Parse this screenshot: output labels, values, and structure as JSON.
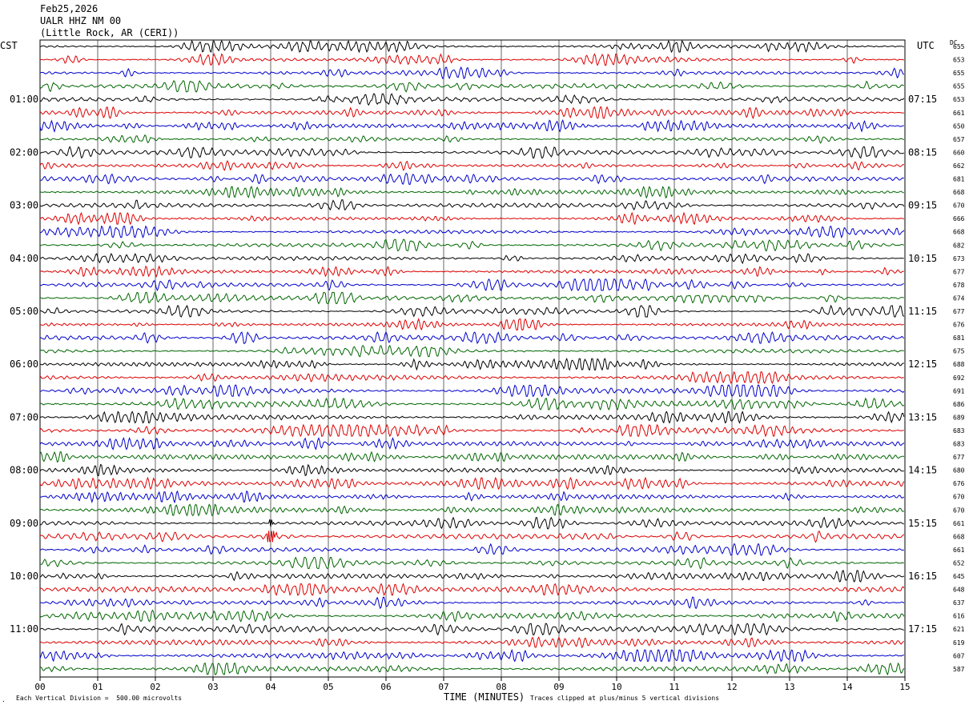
{
  "header": {
    "date": "Feb25,2026",
    "station": "UALR HHZ NM 00",
    "location": "(Little Rock, AR (CERI))"
  },
  "left_zone": "CST",
  "right_zone": "UTC",
  "dc_header": "DC",
  "footer": {
    "scale_note": "Each Vertical Division =  500.00 microvolts",
    "clip_note": "Traces clipped at plus/minus 5 vertical divisions",
    "corner_mark": "."
  },
  "colors": {
    "trace_cycle": [
      "#000000",
      "#dd0000",
      "#0000cc",
      "#006600"
    ],
    "grid": "#000000"
  },
  "chart_data": {
    "type": "line",
    "xlabel": "TIME (MINUTES)",
    "x_ticks": [
      "00",
      "01",
      "02",
      "03",
      "04",
      "05",
      "06",
      "07",
      "08",
      "09",
      "10",
      "11",
      "12",
      "13",
      "14",
      "15"
    ],
    "xlim": [
      0,
      15
    ],
    "left_hour_labels": [
      {
        "row": 4,
        "text": "01:00"
      },
      {
        "row": 8,
        "text": "02:00"
      },
      {
        "row": 12,
        "text": "03:00"
      },
      {
        "row": 16,
        "text": "04:00"
      },
      {
        "row": 20,
        "text": "05:00"
      },
      {
        "row": 24,
        "text": "06:00"
      },
      {
        "row": 28,
        "text": "07:00"
      },
      {
        "row": 32,
        "text": "08:00"
      },
      {
        "row": 36,
        "text": "09:00"
      },
      {
        "row": 40,
        "text": "10:00"
      },
      {
        "row": 44,
        "text": "11:00"
      }
    ],
    "right_hour_labels": [
      {
        "row": 4,
        "text": "07:15"
      },
      {
        "row": 8,
        "text": "08:15"
      },
      {
        "row": 12,
        "text": "09:15"
      },
      {
        "row": 16,
        "text": "10:15"
      },
      {
        "row": 20,
        "text": "11:15"
      },
      {
        "row": 24,
        "text": "12:15"
      },
      {
        "row": 28,
        "text": "13:15"
      },
      {
        "row": 32,
        "text": "14:15"
      },
      {
        "row": 36,
        "text": "15:15"
      },
      {
        "row": 40,
        "text": "16:15"
      },
      {
        "row": 44,
        "text": "17:15"
      }
    ],
    "dc_offsets": [
      "655",
      "653",
      "655",
      "655",
      "653",
      "661",
      "650",
      "657",
      "660",
      "662",
      "681",
      "668",
      "670",
      "666",
      "668",
      "682",
      "673",
      "677",
      "678",
      "674",
      "677",
      "676",
      "681",
      "675",
      "688",
      "692",
      "691",
      "686",
      "689",
      "683",
      "683",
      "677",
      "680",
      "676",
      "670",
      "670",
      "661",
      "668",
      "661",
      "652",
      "645",
      "648",
      "637",
      "616",
      "621",
      "619",
      "607",
      "587"
    ],
    "event": {
      "row": 37,
      "minute": 4.0
    }
  }
}
